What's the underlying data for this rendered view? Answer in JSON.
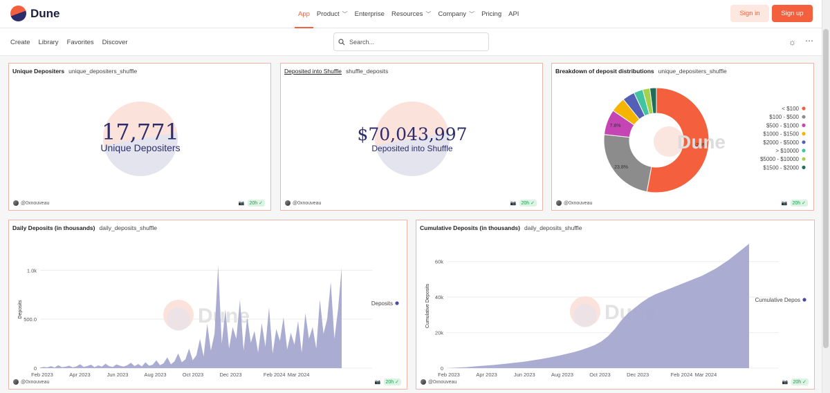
{
  "brand": {
    "name": "Dune"
  },
  "topnav": {
    "items": [
      {
        "label": "App",
        "has_menu": false
      },
      {
        "label": "Product",
        "has_menu": true
      },
      {
        "label": "Enterprise",
        "has_menu": false
      },
      {
        "label": "Resources",
        "has_menu": true
      },
      {
        "label": "Company",
        "has_menu": true
      },
      {
        "label": "Pricing",
        "has_menu": false
      },
      {
        "label": "API",
        "has_menu": false
      }
    ],
    "signin": "Sign in",
    "signup": "Sign up"
  },
  "subnav": {
    "links": [
      "Create",
      "Library",
      "Favorites",
      "Discover"
    ],
    "search_placeholder": "Search..."
  },
  "cards": {
    "depositors": {
      "title": "Unique Depositers",
      "query": "unique_depositers_shuffle",
      "value": "17,771",
      "label": "Unique Depositers",
      "author": "@0xnouveau",
      "age": "20h"
    },
    "deposited": {
      "title": "Deposited into Shuffle",
      "query": "shuffle_deposits",
      "value": "$70,043,997",
      "label": "Deposited into Shuffle",
      "author": "@0xnouveau",
      "age": "20h"
    },
    "breakdown": {
      "title": "Breakdown of deposit distributions",
      "query": "unique_depositers_shuffle",
      "author": "@0xnouveau",
      "age": "20h"
    },
    "daily": {
      "title": "Daily Deposits (in thousands)",
      "query": "daily_deposits_shuffle",
      "author": "@0xnouveau",
      "age": "20h"
    },
    "cumulative": {
      "title": "Cumulative Deposits (in thousands)",
      "query": "daily_deposits_shuffle",
      "author": "@0xnouveau",
      "age": "20h"
    }
  },
  "watermark": "Dune",
  "colors": {
    "accent": "#f4603e",
    "series": "#a7a8cf",
    "navy": "#2c2c6b"
  },
  "chart_data": [
    {
      "type": "pie",
      "title": "Breakdown of deposit distributions",
      "slices": [
        {
          "label": "< $100",
          "value": 52.8,
          "color": "#f4603e",
          "show_pct": "52.8%"
        },
        {
          "label": "$100 - $500",
          "value": 23.8,
          "color": "#8c8c8c",
          "show_pct": "23.8%"
        },
        {
          "label": "$500 - $1000",
          "value": 7.8,
          "color": "#c445b3",
          "show_pct": "7.8%"
        },
        {
          "label": "$1000 - $1500",
          "value": 4.6,
          "color": "#f4b400",
          "show_pct": ""
        },
        {
          "label": "$2000 - $5000",
          "value": 3.8,
          "color": "#5460b5",
          "show_pct": ""
        },
        {
          "label": "> $10000",
          "value": 2.8,
          "color": "#41c4a0",
          "show_pct": ""
        },
        {
          "label": "$5000 - $10000",
          "value": 2.2,
          "color": "#a3d14a",
          "show_pct": ""
        },
        {
          "label": "$1500 - $2000",
          "value": 2.0,
          "color": "#1f6e5c",
          "show_pct": ""
        }
      ]
    },
    {
      "type": "area",
      "title": "Daily Deposits (in thousands)",
      "ylabel": "Deposits",
      "series_name": "Deposits",
      "ylim": [
        0,
        1200
      ],
      "yticks": [
        0,
        500,
        1000
      ],
      "ytick_labels": [
        "0",
        "500.0",
        "1.0k"
      ],
      "xticks": [
        "Feb 2023",
        "Apr 2023",
        "Jun 2023",
        "Aug 2023",
        "Oct 2023",
        "Dec 2023",
        "Feb 2024",
        "Mar 2024"
      ],
      "values": [
        5,
        12,
        8,
        20,
        6,
        30,
        10,
        15,
        25,
        8,
        18,
        40,
        12,
        22,
        35,
        10,
        28,
        15,
        45,
        20,
        12,
        38,
        25,
        16,
        30,
        55,
        20,
        42,
        18,
        60,
        25,
        35,
        80,
        30,
        50,
        110,
        40,
        70,
        150,
        60,
        90,
        200,
        80,
        130,
        300,
        120,
        450,
        180,
        350,
        1050,
        250,
        600,
        200,
        420,
        300,
        700,
        180,
        520,
        260,
        380,
        160,
        460,
        220,
        620,
        150,
        400,
        280,
        520,
        190,
        360,
        240,
        480,
        160,
        560,
        300,
        420,
        200,
        700,
        350,
        500,
        880,
        300,
        600,
        1030
      ],
      "xtick_pos": [
        0,
        0.125,
        0.25,
        0.375,
        0.5,
        0.625,
        0.77,
        0.85
      ]
    },
    {
      "type": "area",
      "title": "Cumulative Deposits (in thousands)",
      "ylabel": "Cumulative Deposits",
      "series_name": "Cumulative Depos",
      "ylim": [
        0,
        70000
      ],
      "yticks": [
        0,
        20000,
        40000,
        60000
      ],
      "ytick_labels": [
        "0",
        "20k",
        "40k",
        "60k"
      ],
      "xticks": [
        "Feb 2023",
        "Apr 2023",
        "Jun 2023",
        "Aug 2023",
        "Oct 2023",
        "Dec 2023",
        "Feb 2024",
        "Mar 2024"
      ],
      "values": [
        0,
        200,
        400,
        600,
        900,
        1200,
        1500,
        1800,
        2200,
        2600,
        3000,
        3400,
        3900,
        4500,
        5100,
        5800,
        6500,
        7300,
        8200,
        9100,
        10200,
        11500,
        13000,
        15000,
        18000,
        22000,
        27000,
        31000,
        34000,
        37000,
        39500,
        41500,
        43000,
        44500,
        46000,
        47500,
        49000,
        50500,
        52000,
        54000,
        56000,
        58500,
        61000,
        64000,
        67000,
        70000
      ],
      "xtick_pos": [
        0,
        0.125,
        0.25,
        0.375,
        0.5,
        0.625,
        0.77,
        0.85
      ]
    }
  ]
}
